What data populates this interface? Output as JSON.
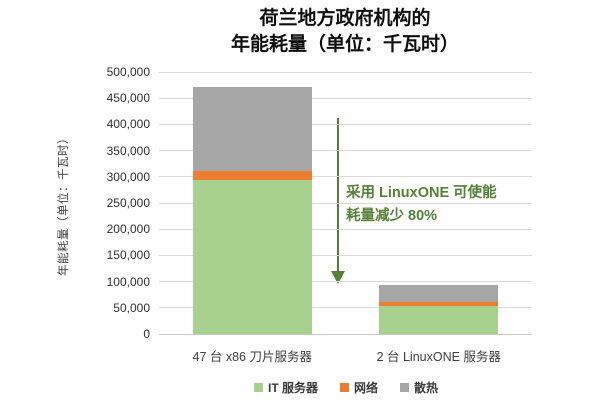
{
  "chart_data": {
    "type": "bar",
    "stacked": true,
    "title": "荷兰地方政府机构的年能耗量（单位：千瓦时）",
    "title_lines": [
      "荷兰地方政府机构的",
      "年能耗量（单位：千瓦时）"
    ],
    "ylabel": "年能耗量（单位：千瓦时）",
    "xlabel": "",
    "ylim": [
      0,
      500000
    ],
    "ytick_step": 50000,
    "ytick_labels_top_down": [
      "500,000",
      "450,000",
      "400,000",
      "350,000",
      "300,000",
      "250,000",
      "200,000",
      "150,000",
      "100,000",
      "50,000",
      "0"
    ],
    "grid": true,
    "legend_position": "bottom",
    "categories": [
      "47 台 x86 刀片服务器",
      "2 台 LinuxONE 服务器"
    ],
    "series": [
      {
        "key": "it-servers",
        "name": "IT 服务器",
        "color": "#a9d18e",
        "values": [
          293000,
          53000
        ]
      },
      {
        "key": "network",
        "name": "网络",
        "color": "#ed7d31",
        "values": [
          18000,
          9000
        ]
      },
      {
        "key": "cooling",
        "name": "散热",
        "color": "#a6a6a6",
        "values": [
          161000,
          31000
        ]
      }
    ]
  },
  "annotation": {
    "lines": [
      "采用 LinuxONE 可使能",
      "耗量减少 80%"
    ],
    "color": "#538135",
    "arrow_direction": "down"
  },
  "colors": {
    "background": "#ffffff",
    "gridline": "#d9d9d9",
    "axis_text": "#303030",
    "title_text": "#0d0d0d",
    "annotation_green": "#538135"
  }
}
